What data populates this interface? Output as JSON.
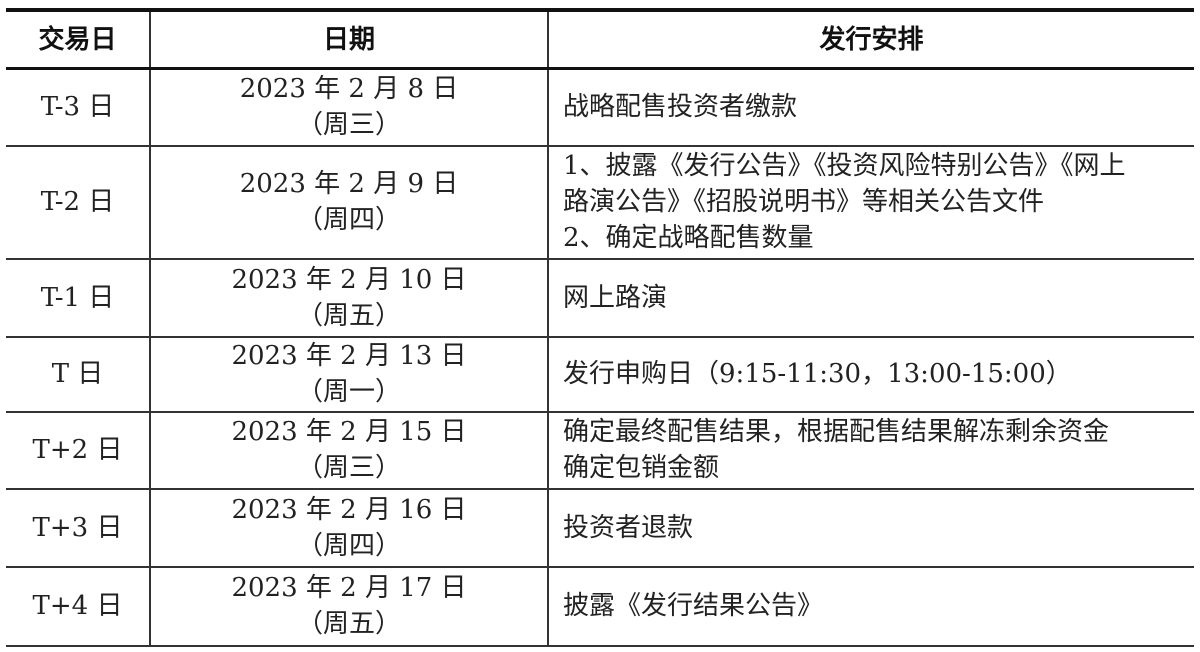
{
  "headers": [
    "交易日",
    "日期",
    "发行安排"
  ],
  "rows": [
    {
      "day": "T-3 日",
      "date": "2023 年 2 月 8 日",
      "weekday": "（周三）",
      "arrangement": [
        "战略配售投资者缴款"
      ]
    },
    {
      "day": "T-2 日",
      "date": "2023 年 2 月 9 日",
      "weekday": "（周四）",
      "arrangement": [
        "1、披露《发行公告》《投资风险特别公告》《网上",
        "路演公告》《招股说明书》等相关公告文件",
        "2、确定战略配售数量"
      ]
    },
    {
      "day": "T-1 日",
      "date": "2023 年 2 月 10 日",
      "weekday": "（周五）",
      "arrangement": [
        "网上路演"
      ]
    },
    {
      "day": "T 日",
      "date": "2023 年 2 月 13 日",
      "weekday": "（周一）",
      "arrangement": [
        "发行申购日（9:15-11:30，13:00-15:00）"
      ]
    },
    {
      "day": "T+2 日",
      "date": "2023 年 2 月 15 日",
      "weekday": "（周三）",
      "arrangement": [
        "确定最终配售结果，根据配售结果解冻剩余资金",
        "确定包销金额"
      ]
    },
    {
      "day": "T+3 日",
      "date": "2023 年 2 月 16 日",
      "weekday": "（周四）",
      "arrangement": [
        "投资者退款"
      ]
    },
    {
      "day": "T+4 日",
      "date": "2023 年 2 月 17 日",
      "weekday": "（周五）",
      "arrangement": [
        "披露《发行结果公告》"
      ]
    }
  ]
}
